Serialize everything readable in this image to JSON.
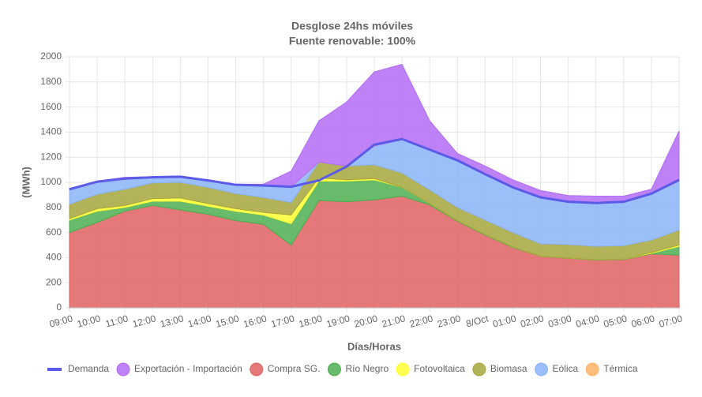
{
  "chart_data": {
    "type": "stacked-area",
    "title": "Desglose 24hs móviles",
    "subtitle": "Fuente renovable: 100%",
    "x_label": "Días/Horas",
    "y_label": "(MWh)",
    "categories": [
      "09:00",
      "10:00",
      "11:00",
      "12:00",
      "13:00",
      "14:00",
      "15:00",
      "16:00",
      "17:00",
      "18:00",
      "19:00",
      "20:00",
      "21:00",
      "22:00",
      "23:00",
      "8/Oct",
      "01:00",
      "02:00",
      "03:00",
      "04:00",
      "05:00",
      "06:00",
      "07:00"
    ],
    "ylim": [
      0,
      2000
    ],
    "yticks": [
      0,
      200,
      400,
      600,
      800,
      1000,
      1200,
      1400,
      1600,
      1800,
      2000
    ],
    "grid": true,
    "legend": "bottom",
    "line": {
      "name": "Demanda",
      "color": "#5b5be8",
      "values": [
        945,
        1005,
        1030,
        1040,
        1045,
        1015,
        980,
        975,
        965,
        1015,
        1125,
        1300,
        1345,
        1260,
        1175,
        1065,
        960,
        880,
        845,
        835,
        845,
        910,
        1020
      ]
    },
    "series": [
      {
        "name": "Exportación - Importación",
        "color": "#b36bf5",
        "values": [
          10,
          10,
          10,
          5,
          5,
          5,
          5,
          10,
          125,
          330,
          510,
          590,
          600,
          230,
          55,
          70,
          65,
          60,
          50,
          55,
          50,
          40,
          400
        ]
      },
      {
        "name": "Compra SG.",
        "color": "#e06060",
        "values": [
          600,
          680,
          770,
          815,
          780,
          745,
          695,
          665,
          500,
          855,
          845,
          860,
          890,
          820,
          690,
          580,
          480,
          410,
          395,
          380,
          385,
          430,
          420
        ]
      },
      {
        "name": "Río Negro",
        "color": "#4caf50",
        "values": [
          100,
          90,
          30,
          35,
          70,
          65,
          75,
          75,
          170,
          155,
          165,
          160,
          70,
          10,
          5,
          5,
          5,
          2,
          2,
          3,
          3,
          5,
          70
        ]
      },
      {
        "name": "Fotovoltaica",
        "color": "#ffff33",
        "values": [
          10,
          20,
          15,
          20,
          25,
          20,
          20,
          20,
          70,
          25,
          10,
          10,
          0,
          0,
          0,
          0,
          0,
          0,
          0,
          0,
          0,
          5,
          10
        ]
      },
      {
        "name": "Biomasa",
        "color": "#a6a63c",
        "values": [
          115,
          115,
          130,
          125,
          125,
          130,
          120,
          120,
          100,
          125,
          110,
          110,
          115,
          110,
          105,
          115,
          115,
          98,
          108,
          107,
          107,
          100,
          120
        ]
      },
      {
        "name": "Eólica",
        "color": "#8ab4f8",
        "values": [
          115,
          95,
          85,
          45,
          45,
          55,
          70,
          95,
          125,
          0,
          0,
          150,
          265,
          320,
          375,
          360,
          355,
          365,
          340,
          345,
          345,
          365,
          390
        ]
      },
      {
        "name": "Térmica",
        "color": "#ffb366",
        "values": [
          0,
          0,
          0,
          0,
          0,
          0,
          0,
          0,
          0,
          0,
          0,
          0,
          0,
          0,
          0,
          0,
          0,
          0,
          0,
          0,
          0,
          0,
          0
        ]
      }
    ],
    "stack_order": [
      1,
      2,
      3,
      4,
      5,
      6,
      0
    ]
  }
}
